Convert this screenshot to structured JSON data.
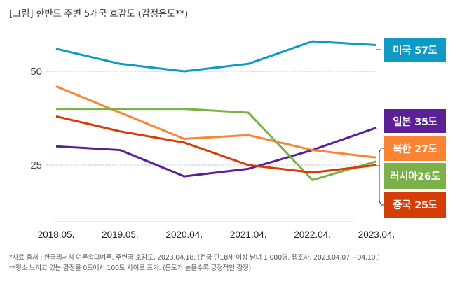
{
  "title": "[그림] 한반도 주변 5개국 호감도 (감정온도**)",
  "notes": [
    "*자료 출처 : 한국리서치 여론속의여론, 주변국 호감도, 2023.04.18. (전국 만18세 이상 남녀 1,000명, 웹조사, 2023.04.07.~04.10.)",
    "**평소 느끼고 있는 감정을 0도에서 100도 사이로 표기. (온도가 높을수록 긍정적인 감정)"
  ],
  "chart_data": {
    "type": "line",
    "title": "[그림] 한반도 주변 5개국 호감도 (감정온도**)",
    "xlabel": "",
    "ylabel": "",
    "categories": [
      "2018.05.",
      "2019.05.",
      "2020.04.",
      "2021.04.",
      "2022.04.",
      "2023.04."
    ],
    "yticks": [
      25,
      50
    ],
    "ytick_labels": [
      "25",
      "50"
    ],
    "ylim": [
      10,
      60
    ],
    "grid": "horizontal dotted at ticks",
    "legend": "direct labels at right",
    "series": [
      {
        "name": "미국",
        "label": "미국 57도",
        "color": "#0e9ac4",
        "values": [
          56,
          52,
          50,
          52,
          58,
          57
        ]
      },
      {
        "name": "일본",
        "label": "일본 35도",
        "color": "#5b2096",
        "values": [
          30,
          29,
          22,
          24,
          29,
          35
        ]
      },
      {
        "name": "북한",
        "label": "북한 27도",
        "color": "#fb8433",
        "values": [
          46,
          39,
          32,
          33,
          29,
          27
        ]
      },
      {
        "name": "러시아",
        "label": "러시아26도",
        "color": "#7cb04a",
        "values": [
          40,
          40,
          40,
          39,
          21,
          26
        ]
      },
      {
        "name": "중국",
        "label": "중국 25도",
        "color": "#d43d06",
        "values": [
          38,
          34,
          31,
          25,
          23,
          25
        ]
      }
    ]
  }
}
